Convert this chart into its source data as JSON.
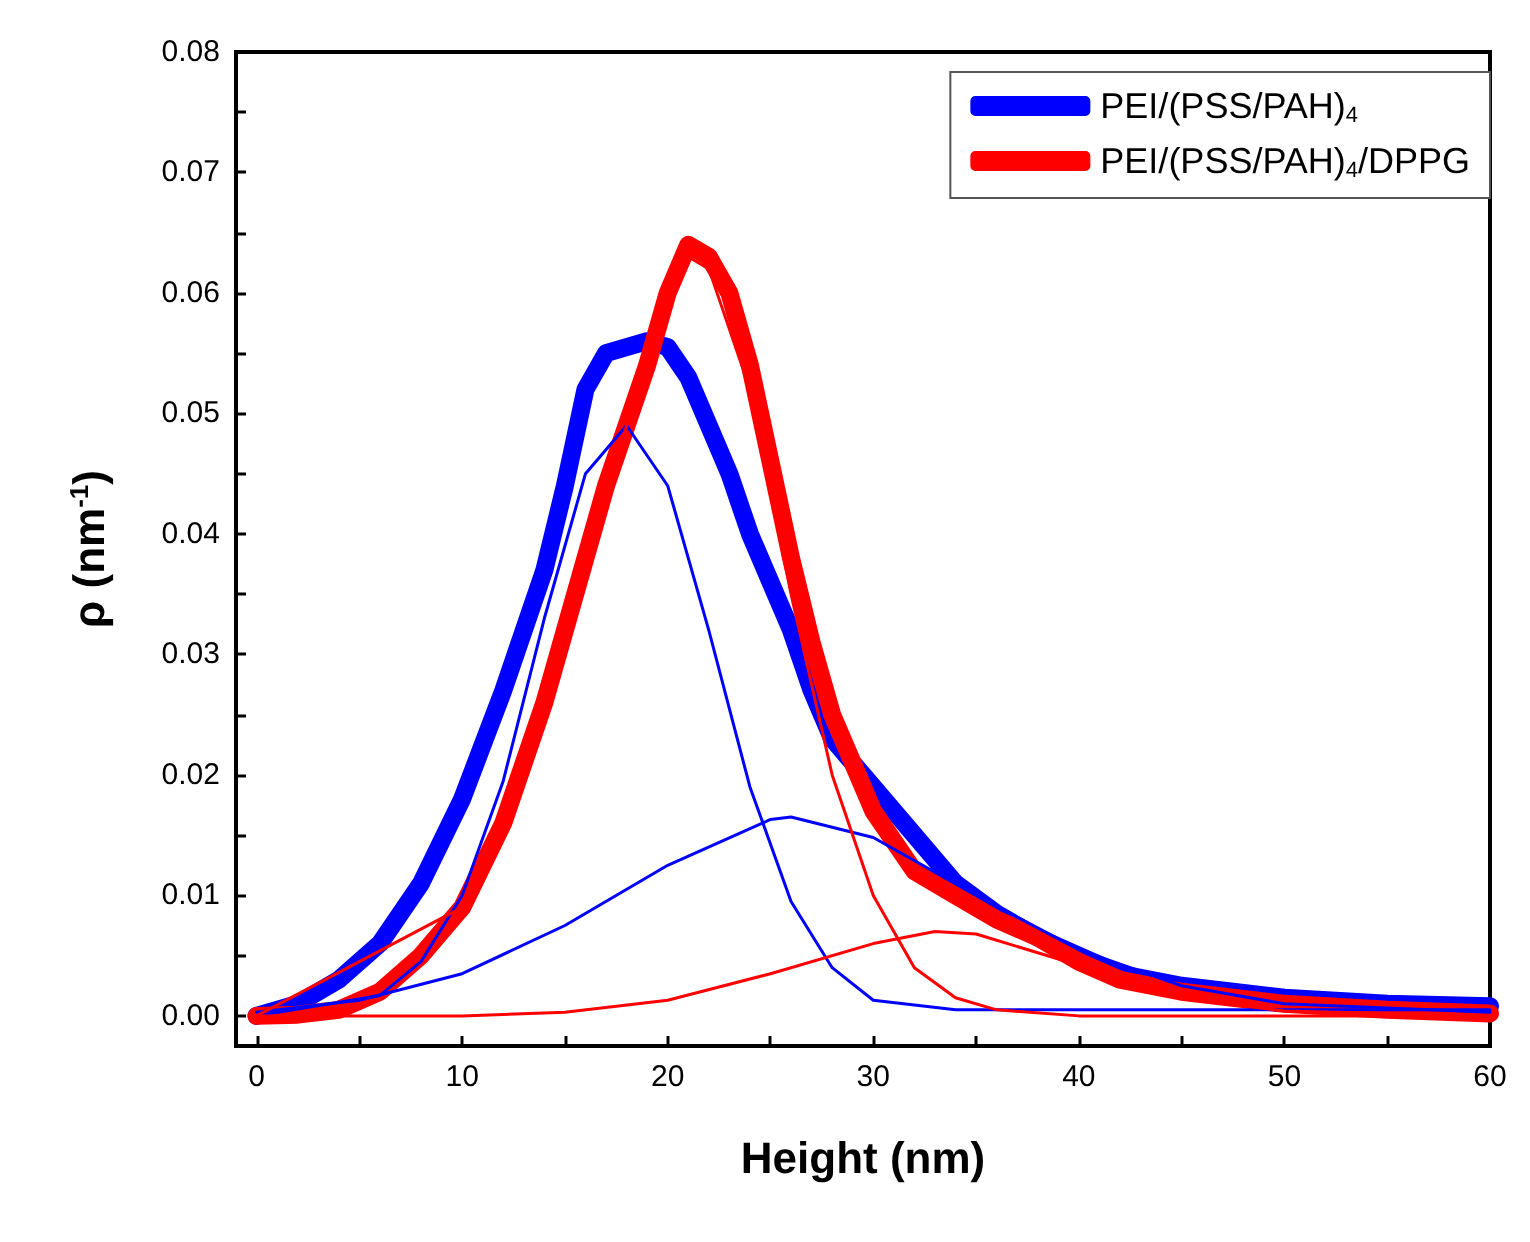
{
  "chart_data": {
    "type": "line",
    "xlabel": "Height (nm)",
    "ylabel": "ρ (nm$^{-1}$)",
    "xlim": [
      -1,
      60
    ],
    "ylim": [
      -0.0025,
      0.08
    ],
    "xticks": [
      0,
      {
        "value": 5,
        "label": null
      },
      10,
      {
        "value": 15,
        "label": null
      },
      20,
      {
        "value": 25,
        "label": null
      },
      30,
      {
        "value": 35,
        "label": null
      },
      40,
      {
        "value": 45,
        "label": null
      },
      50,
      {
        "value": 55,
        "label": null
      },
      60
    ],
    "yticks": [
      {
        "value": 0,
        "label": "0.00"
      },
      {
        "value": 0.005,
        "label": null
      },
      {
        "value": 0.01,
        "label": "0.01"
      },
      {
        "value": 0.015,
        "label": null
      },
      {
        "value": 0.02,
        "label": "0.02"
      },
      {
        "value": 0.025,
        "label": null
      },
      {
        "value": 0.03,
        "label": "0.03"
      },
      {
        "value": 0.035,
        "label": null
      },
      {
        "value": 0.04,
        "label": "0.04"
      },
      {
        "value": 0.045,
        "label": null
      },
      {
        "value": 0.05,
        "label": "0.05"
      },
      {
        "value": 0.055,
        "label": null
      },
      {
        "value": 0.06,
        "label": "0.06"
      },
      {
        "value": 0.065,
        "label": null
      },
      {
        "value": 0.07,
        "label": "0.07"
      },
      {
        "value": 0.075,
        "label": null
      },
      {
        "value": 0.08,
        "label": "0.08"
      }
    ],
    "legend": "top right",
    "marker": "none",
    "line_style": "solid",
    "series": [
      {
        "name": "PEI/(PSS/PAH)$_{4}$",
        "color": "#0000ff",
        "x": [
          0,
          2,
          4,
          6,
          8,
          10,
          12,
          14,
          15,
          16,
          17,
          18,
          19,
          20,
          21,
          22,
          23,
          24,
          25,
          26,
          27,
          28,
          30,
          32,
          34,
          36,
          38,
          40,
          42,
          45,
          50,
          55,
          60
        ],
        "values": [
          0,
          0.001,
          0.003,
          0.006,
          0.011,
          0.018,
          0.027,
          0.037,
          0.044,
          0.052,
          0.055,
          0.0555,
          0.056,
          0.0555,
          0.053,
          0.049,
          0.045,
          0.04,
          0.036,
          0.032,
          0.027,
          0.023,
          0.019,
          0.015,
          0.011,
          0.0085,
          0.0065,
          0.005,
          0.0035,
          0.0025,
          0.0015,
          0.001,
          0.0008
        ]
      },
      {
        "name": "PEI/(PSS/PAH)$_{4}$/DPPG",
        "color": "#ff0000",
        "x": [
          0,
          2,
          4,
          6,
          8,
          10,
          12,
          14,
          16,
          17,
          18,
          19,
          20,
          21,
          22,
          23,
          24,
          25,
          26,
          27,
          28,
          30,
          32,
          34,
          36,
          38,
          40,
          42,
          45,
          50,
          55,
          60
        ],
        "values": [
          0,
          0.0001,
          0.0005,
          0.002,
          0.005,
          0.009,
          0.016,
          0.026,
          0.038,
          0.044,
          0.049,
          0.054,
          0.06,
          0.064,
          0.063,
          0.06,
          0.054,
          0.046,
          0.038,
          0.031,
          0.025,
          0.017,
          0.012,
          0.01,
          0.008,
          0.0065,
          0.0045,
          0.003,
          0.002,
          0.001,
          0.0005,
          0.0002
        ]
      },
      {
        "color": "#0000ff",
        "x": [
          0,
          6,
          8,
          10,
          12,
          14,
          16,
          18,
          20,
          22,
          24,
          26,
          28,
          30,
          34,
          40,
          60
        ],
        "values": [
          0,
          0.0017,
          0.0045,
          0.01,
          0.0195,
          0.033,
          0.045,
          0.049,
          0.044,
          0.032,
          0.019,
          0.0095,
          0.004,
          0.0013,
          0.0005,
          0.0005,
          0.0005
        ]
      },
      {
        "color": "#0000ff",
        "x": [
          0,
          5,
          10,
          15,
          20,
          25,
          26,
          30,
          35,
          40,
          45,
          50,
          60
        ],
        "values": [
          0.0003,
          0.0013,
          0.0035,
          0.0075,
          0.0125,
          0.0163,
          0.0165,
          0.0148,
          0.01,
          0.0055,
          0.0025,
          0.001,
          0.0003
        ]
      },
      {
        "color": "#ff0000",
        "x": [
          0,
          10,
          14,
          18,
          20,
          21,
          22,
          24,
          26,
          28,
          30,
          32,
          34,
          36,
          40,
          60
        ],
        "values": [
          0,
          0.009,
          0.026,
          0.049,
          0.059,
          0.063,
          0.062,
          0.052,
          0.035,
          0.02,
          0.01,
          0.004,
          0.0015,
          0.0005,
          0,
          0
        ]
      },
      {
        "color": "#ff0000",
        "x": [
          0,
          10,
          15,
          20,
          25,
          30,
          33,
          35,
          40,
          45,
          50,
          60
        ],
        "values": [
          0,
          0,
          0.0003,
          0.0013,
          0.0035,
          0.006,
          0.007,
          0.0068,
          0.0042,
          0.0015,
          0.0004,
          0
        ]
      }
    ]
  }
}
